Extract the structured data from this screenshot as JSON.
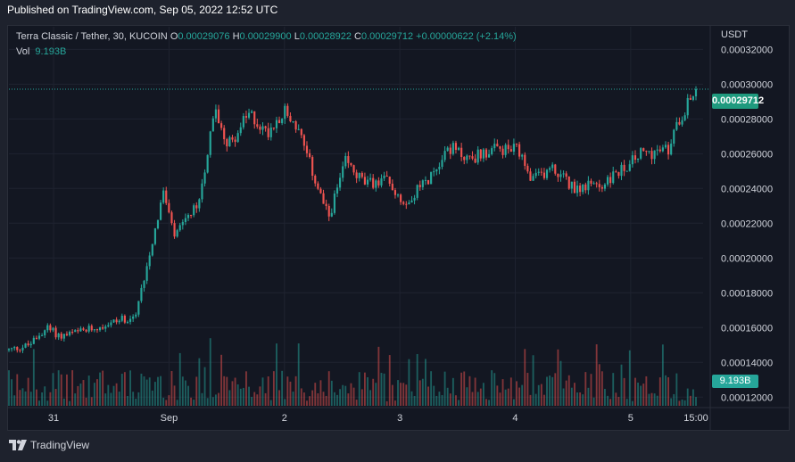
{
  "header": {
    "published": "Published on TradingView.com, Sep 05, 2022 12:52 UTC"
  },
  "legend": {
    "symbol": "Terra Classic / Tether, 30, KUCOIN",
    "o_label": "O",
    "o": "0.00029076",
    "h_label": "H",
    "h": "0.00029900",
    "l_label": "L",
    "l": "0.00028922",
    "c_label": "C",
    "c": "0.00029712",
    "change": "+0.00000622 (+2.14%)",
    "vol_label": "Vol",
    "vol": "9.193B"
  },
  "axis": {
    "currency": "USDT",
    "price_ticks": [
      "0.00032000",
      "0.00030000",
      "0.00028000",
      "0.00026000",
      "0.00024000",
      "0.00022000",
      "0.00020000",
      "0.00018000",
      "0.00016000",
      "0.00014000",
      "0.00012000"
    ],
    "time_ticks": [
      "31",
      "Sep",
      "2",
      "3",
      "4",
      "5",
      "15:00"
    ]
  },
  "last_price_label": "0.00029712",
  "last_volume_label": "9.193B",
  "footer": {
    "brand": "TradingView"
  },
  "colors": {
    "up": "#26a69a",
    "down": "#ef5350",
    "background": "#131722",
    "grid": "#1f2330",
    "text": "#d1d4dc"
  },
  "chart_data": {
    "type": "candlestick",
    "price_ylim": [
      0.000115,
      0.000333
    ],
    "price_ticks": [
      0.00012,
      0.00014,
      0.00016,
      0.00018,
      0.0002,
      0.00022,
      0.00024,
      0.00026,
      0.00028,
      0.0003,
      0.00032
    ],
    "x_ticks": [
      {
        "label": "31",
        "t": 0.065
      },
      {
        "label": "Sep",
        "t": 0.233
      },
      {
        "label": "2",
        "t": 0.401
      },
      {
        "label": "3",
        "t": 0.569
      },
      {
        "label": "4",
        "t": 0.737
      },
      {
        "label": "5",
        "t": 0.905
      },
      {
        "label": "15:00",
        "t": 1.0
      }
    ],
    "last_price": 0.00029712,
    "anchors": [
      [
        0.0,
        0.000147
      ],
      [
        0.03,
        0.00015
      ],
      [
        0.055,
        0.00016
      ],
      [
        0.075,
        0.000155
      ],
      [
        0.11,
        0.000158
      ],
      [
        0.15,
        0.000163
      ],
      [
        0.185,
        0.000167
      ],
      [
        0.2,
        0.000195
      ],
      [
        0.225,
        0.000238
      ],
      [
        0.24,
        0.000212
      ],
      [
        0.275,
        0.00023
      ],
      [
        0.3,
        0.000285
      ],
      [
        0.32,
        0.000265
      ],
      [
        0.35,
        0.000283
      ],
      [
        0.375,
        0.000272
      ],
      [
        0.4,
        0.000285
      ],
      [
        0.42,
        0.000275
      ],
      [
        0.45,
        0.00024
      ],
      [
        0.465,
        0.000223
      ],
      [
        0.49,
        0.000255
      ],
      [
        0.52,
        0.000242
      ],
      [
        0.55,
        0.000245
      ],
      [
        0.575,
        0.000232
      ],
      [
        0.61,
        0.000245
      ],
      [
        0.64,
        0.000264
      ],
      [
        0.67,
        0.000257
      ],
      [
        0.7,
        0.000262
      ],
      [
        0.74,
        0.000262
      ],
      [
        0.76,
        0.000244
      ],
      [
        0.79,
        0.000252
      ],
      [
        0.82,
        0.000241
      ],
      [
        0.86,
        0.000241
      ],
      [
        0.89,
        0.00025
      ],
      [
        0.92,
        0.00026
      ],
      [
        0.96,
        0.000262
      ],
      [
        0.975,
        0.00028
      ],
      [
        1.0,
        0.000297
      ]
    ],
    "volume_max": 9.5
  }
}
